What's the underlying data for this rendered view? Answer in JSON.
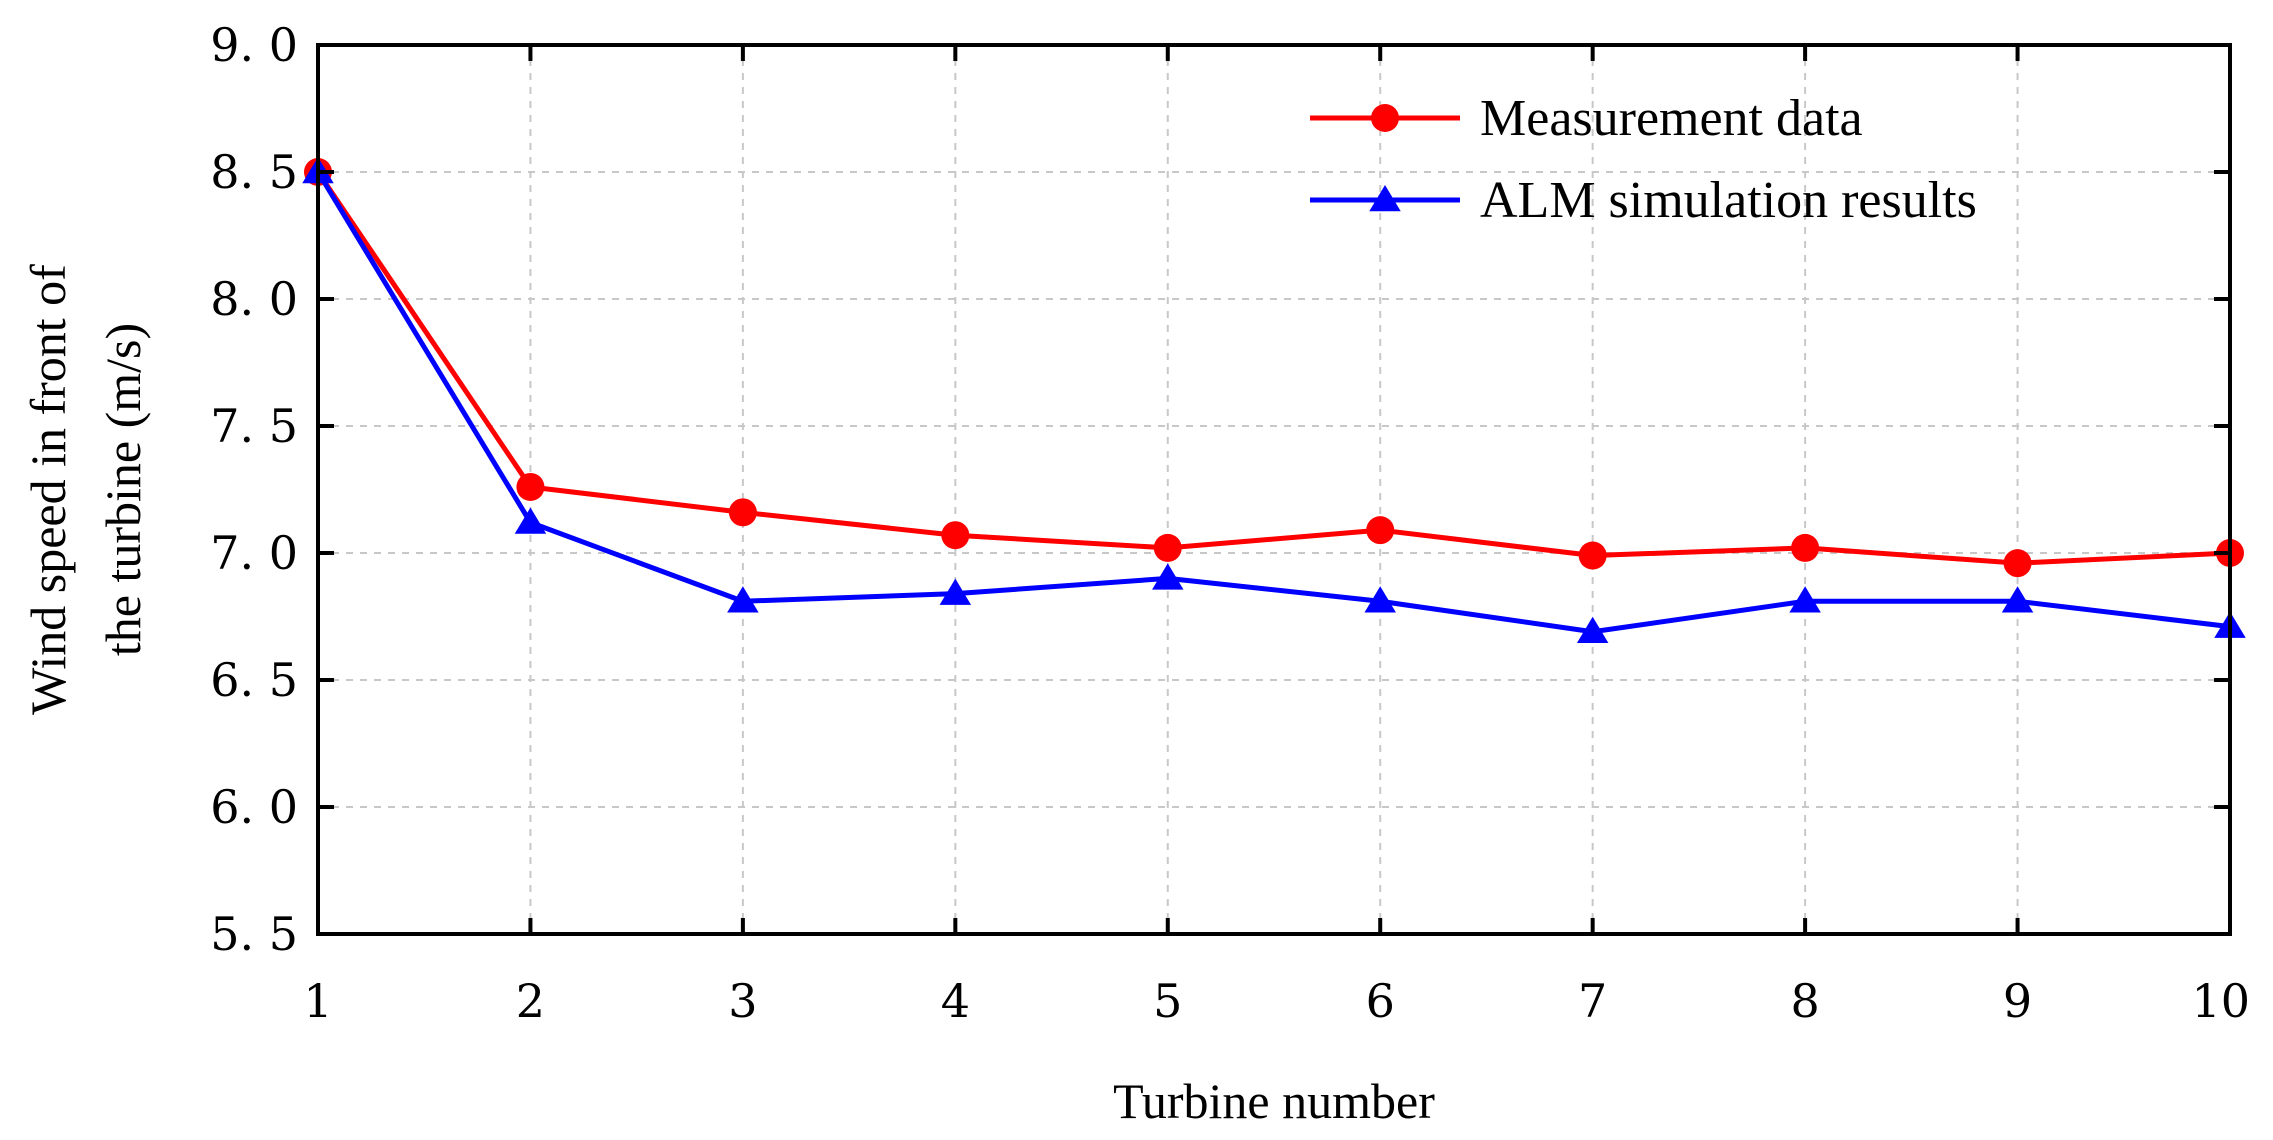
{
  "chart_data": {
    "type": "line",
    "title": "",
    "xlabel": "Turbine number",
    "ylabel_lines": [
      "Wind speed in front of",
      "the turbine (m/s)"
    ],
    "x": [
      1,
      2,
      3,
      4,
      5,
      6,
      7,
      8,
      9,
      10
    ],
    "xlim": [
      1,
      10
    ],
    "ylim": [
      5.5,
      9.0
    ],
    "x_ticks": [
      "1",
      "2",
      "3",
      "4",
      "5",
      "6",
      "7",
      "8",
      "9",
      "10"
    ],
    "y_ticks": [
      "5. 5",
      "6. 0",
      "6. 5",
      "7. 0",
      "7. 5",
      "8. 0",
      "8. 5",
      "9. 0"
    ],
    "grid": true,
    "legend_position": "top-right",
    "series": [
      {
        "name": "Measurement data",
        "color": "#ff0000",
        "marker": "circle",
        "values": [
          8.5,
          7.26,
          7.16,
          7.07,
          7.02,
          7.09,
          6.99,
          7.02,
          6.96,
          7.0
        ]
      },
      {
        "name": "ALM simulation results",
        "color": "#0000ff",
        "marker": "triangle",
        "values": [
          8.5,
          7.12,
          6.81,
          6.84,
          6.9,
          6.81,
          6.69,
          6.81,
          6.81,
          6.71
        ]
      }
    ]
  }
}
